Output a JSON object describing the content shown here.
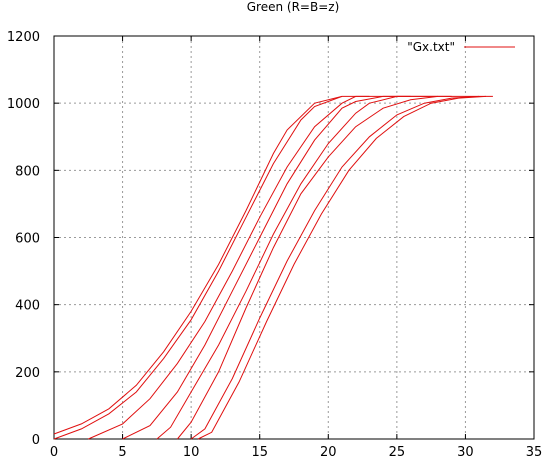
{
  "chart_data": {
    "type": "line",
    "title": "Green (R=B=z)",
    "xlabel": "",
    "ylabel": "",
    "xlim": [
      0,
      35
    ],
    "ylim": [
      0,
      1200
    ],
    "xticks": [
      0,
      5,
      10,
      15,
      20,
      25,
      30,
      35
    ],
    "yticks": [
      0,
      200,
      400,
      600,
      800,
      1000,
      1200
    ],
    "grid": true,
    "legend": {
      "label": "\"Gx.txt\"",
      "placement": "top-right"
    },
    "series_color": "#e01010",
    "series": [
      {
        "x": [
          0,
          2,
          4,
          6,
          8,
          10,
          12,
          14,
          16,
          17,
          19,
          21
        ],
        "y": [
          15,
          45,
          90,
          160,
          260,
          380,
          520,
          680,
          850,
          920,
          1000,
          1020
        ]
      },
      {
        "x": [
          0,
          2,
          4,
          6,
          8,
          10,
          12,
          14,
          16,
          18,
          19,
          21,
          23
        ],
        "y": [
          0,
          30,
          75,
          140,
          240,
          355,
          500,
          660,
          820,
          950,
          990,
          1020,
          1020
        ]
      },
      {
        "x": [
          2.5,
          5,
          7,
          9,
          11,
          13,
          15,
          17,
          19,
          21,
          22,
          24,
          26
        ],
        "y": [
          0,
          45,
          120,
          225,
          350,
          500,
          660,
          810,
          930,
          1000,
          1020,
          1020,
          1020
        ]
      },
      {
        "x": [
          5,
          7,
          9,
          11,
          13,
          15,
          17,
          19,
          21,
          22,
          24,
          26,
          28
        ],
        "y": [
          0,
          40,
          140,
          280,
          440,
          600,
          760,
          890,
          985,
          1005,
          1020,
          1020,
          1020
        ]
      },
      {
        "x": [
          7.5,
          8.5,
          10,
          12,
          14,
          16,
          18,
          20,
          22,
          23,
          25,
          27,
          29
        ],
        "y": [
          0,
          35,
          140,
          280,
          440,
          610,
          760,
          880,
          970,
          1000,
          1020,
          1020,
          1020
        ]
      },
      {
        "x": [
          9,
          10,
          12,
          14,
          16,
          18,
          20,
          22,
          24,
          26,
          28,
          30,
          32
        ],
        "y": [
          0,
          50,
          200,
          390,
          570,
          730,
          840,
          930,
          985,
          1010,
          1020,
          1020,
          1020
        ]
      },
      {
        "x": [
          10,
          11,
          13,
          15,
          17,
          19,
          21,
          23,
          25,
          27,
          29,
          31
        ],
        "y": [
          0,
          30,
          180,
          360,
          530,
          680,
          810,
          900,
          965,
          1000,
          1015,
          1020
        ]
      },
      {
        "x": [
          10.5,
          11.5,
          13.5,
          15.5,
          17.5,
          19.5,
          21.5,
          23.5,
          25.5,
          27.5,
          29.5,
          31.5
        ],
        "y": [
          0,
          20,
          170,
          350,
          520,
          670,
          800,
          895,
          960,
          1000,
          1015,
          1020
        ]
      }
    ]
  }
}
